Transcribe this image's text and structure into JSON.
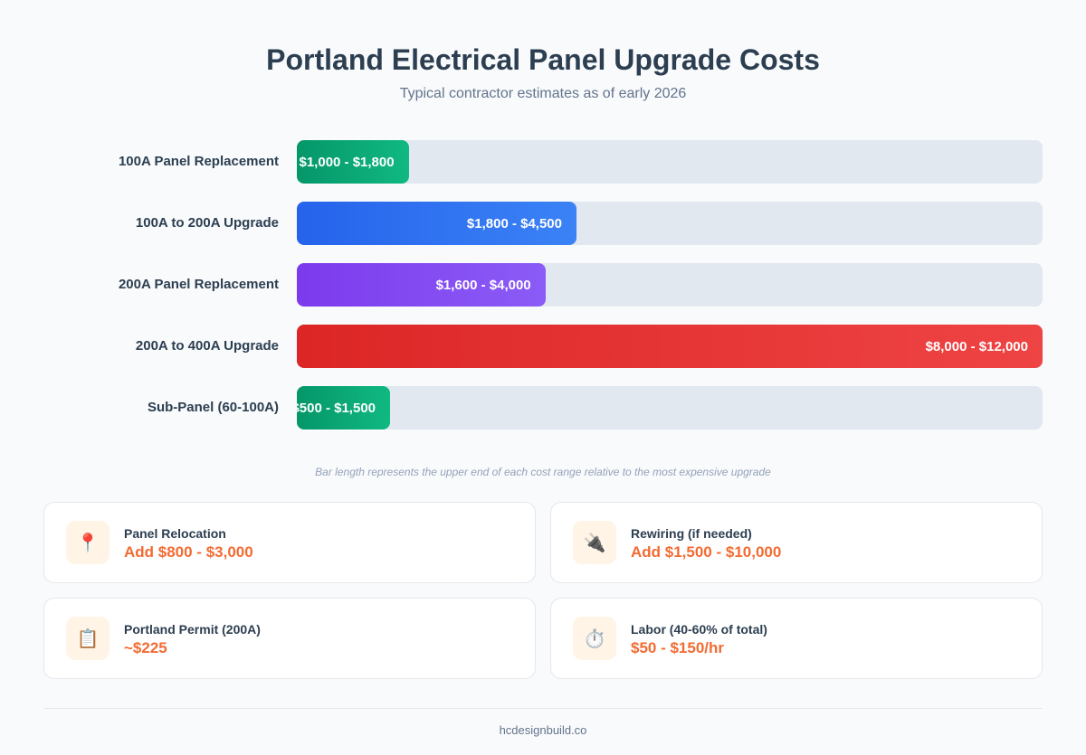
{
  "chart_data": {
    "type": "bar",
    "orientation": "horizontal",
    "title": "Portland Electrical Panel Upgrade Costs",
    "subtitle": "Typical contractor estimates as of early 2026",
    "categories": [
      "100A Panel Replacement",
      "100A to 200A Upgrade",
      "200A Panel Replacement",
      "200A to 400A Upgrade",
      "Sub-Panel (60-100A)"
    ],
    "ranges": [
      [
        1000,
        1800
      ],
      [
        1800,
        4500
      ],
      [
        1600,
        4000
      ],
      [
        8000,
        12000
      ],
      [
        500,
        1500
      ]
    ],
    "data_labels": [
      "$1,000 - $1,800",
      "$1,800 - $4,500",
      "$1,600 - $4,000",
      "$8,000 - $12,000",
      "$500 - $1,500"
    ],
    "values": [
      1800,
      4500,
      4000,
      12000,
      1500
    ],
    "xlim": [
      0,
      12000
    ],
    "colors": [
      [
        "#059669",
        "#10b981"
      ],
      [
        "#2563eb",
        "#3b82f6"
      ],
      [
        "#7c3aed",
        "#8b5cf6"
      ],
      [
        "#dc2626",
        "#ef4444"
      ],
      [
        "#059669",
        "#10b981"
      ]
    ],
    "note": "Bar length represents the upper end of each cost range relative to the most expensive upgrade"
  },
  "cards": [
    {
      "icon": "pushpin-icon",
      "glyph": "📍",
      "title": "Panel Relocation",
      "value": "Add $800 - $3,000"
    },
    {
      "icon": "plug-icon",
      "glyph": "🔌",
      "title": "Rewiring (if needed)",
      "value": "Add $1,500 - $10,000"
    },
    {
      "icon": "clipboard-icon",
      "glyph": "📋",
      "title": "Portland Permit (200A)",
      "value": "~$225"
    },
    {
      "icon": "stopwatch-icon",
      "glyph": "⏱️",
      "title": "Labor (40-60% of total)",
      "value": "$50 - $150/hr"
    }
  ],
  "footer": "hcdesignbuild.co"
}
